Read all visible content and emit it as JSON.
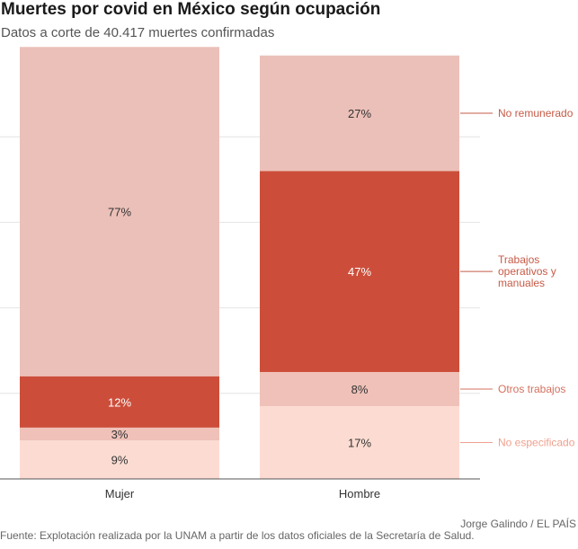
{
  "header": {
    "title": "Muertes por covid en México según ocupación",
    "subtitle": "Datos a corte de 40.417 muertes confirmadas"
  },
  "footer": {
    "source": "Fuente: Explotación realizada por la UNAM a partir de los datos oficiales de la Secretaría de Salud.",
    "credit": "Jorge Galindo / EL PAÍS"
  },
  "chart_data": {
    "type": "bar",
    "stacked": true,
    "orientation": "vertical",
    "categories": [
      "Mujer",
      "Hombre"
    ],
    "ylim": [
      0,
      100
    ],
    "unit": "%",
    "grid": true,
    "legend": "right, inline labels",
    "series": [
      {
        "name": "No especificado",
        "values": [
          9,
          17
        ],
        "labels": [
          "9%",
          "17%"
        ],
        "color": "#fcdcd2",
        "label_color": "#f0a08e"
      },
      {
        "name": "Otros trabajos",
        "values": [
          3,
          8
        ],
        "labels": [
          "3%",
          "8%"
        ],
        "color": "#efc1b8",
        "label_color": "#d4705e"
      },
      {
        "name": "Trabajos operativos y manuales",
        "label_lines": [
          "Trabajos",
          "operativos y",
          "manuales"
        ],
        "values": [
          12,
          47
        ],
        "labels": [
          "12%",
          "47%"
        ],
        "color": "#cc4e3a",
        "label_color": "#c65a46"
      },
      {
        "name": "No remunerado",
        "values": [
          77,
          27
        ],
        "labels": [
          "77%",
          "27%"
        ],
        "color": "#ebc0b8",
        "label_color": "#c65a46"
      }
    ]
  }
}
